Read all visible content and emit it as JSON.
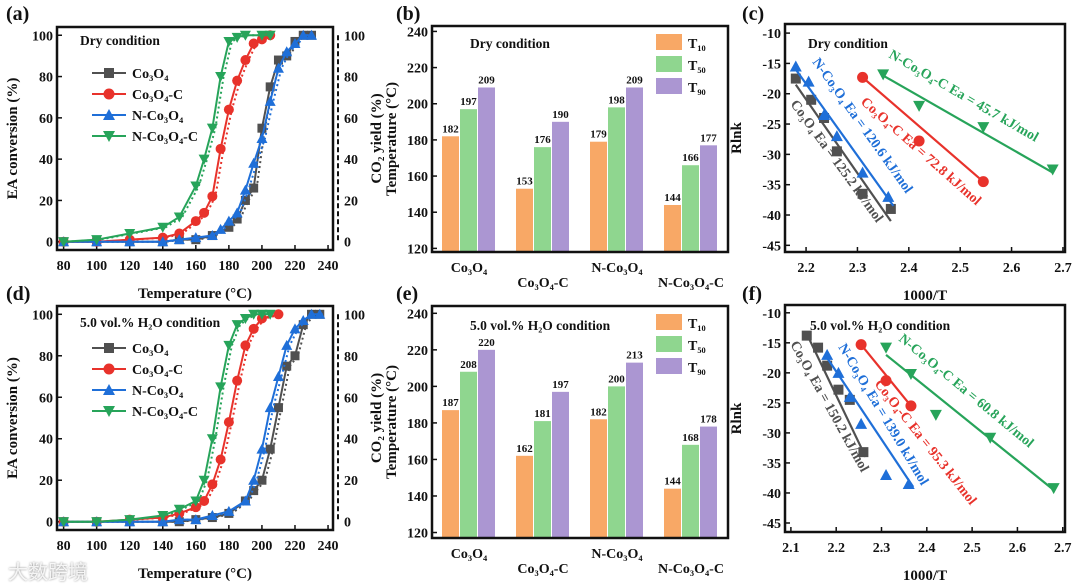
{
  "watermark": "大数跨境",
  "colors": {
    "Co3O4": "#505050",
    "Co3O4-C": "#e8322b",
    "N-Co3O4": "#1f6fd8",
    "N-Co3O4-C": "#27a45a",
    "T10": "#f8a866",
    "T50": "#8fd68f",
    "T90": "#ab96d2"
  },
  "chart_data": [
    {
      "panel": "(a)",
      "type": "line",
      "title": "Dry condition",
      "xlabel": "Temperature (°C)",
      "ylabel": "EA conversion (%)",
      "ylabel_right": "CO₂ yield (%)",
      "xlim": [
        76,
        243
      ],
      "ylim": [
        -4,
        104
      ],
      "xticks": [
        80,
        100,
        120,
        140,
        160,
        180,
        200,
        220,
        240
      ],
      "yticks": [
        0,
        20,
        40,
        60,
        80,
        100
      ],
      "yticks_right": [
        0,
        20,
        40,
        60,
        80,
        100
      ],
      "legend": "top-left",
      "series": [
        {
          "name": "Co₃O₄",
          "key": "Co3O4",
          "marker": "square",
          "x": [
            80,
            100,
            120,
            140,
            150,
            160,
            170,
            180,
            185,
            190,
            195,
            200,
            205,
            210,
            215,
            220,
            225,
            230
          ],
          "y": [
            0,
            0,
            0,
            0,
            1,
            1,
            3,
            7,
            11,
            20,
            26,
            55,
            75,
            88,
            90,
            97,
            100,
            100
          ]
        },
        {
          "name": "Co₃O₄-C",
          "key": "Co3O4-C",
          "marker": "circle",
          "x": [
            80,
            100,
            120,
            140,
            150,
            160,
            165,
            170,
            175,
            180,
            185,
            190,
            195,
            200,
            205
          ],
          "y": [
            0,
            0,
            1,
            2,
            4,
            10,
            14,
            22,
            45,
            64,
            78,
            88,
            96,
            98,
            100
          ]
        },
        {
          "name": "N-Co₃O₄",
          "key": "N-Co3O4",
          "marker": "triangle-up",
          "x": [
            80,
            100,
            120,
            140,
            150,
            160,
            170,
            175,
            180,
            185,
            190,
            195,
            200,
            205,
            210,
            215,
            220,
            225,
            230
          ],
          "y": [
            0,
            0,
            0,
            0,
            1,
            2,
            3,
            6,
            10,
            14,
            25,
            38,
            50,
            68,
            84,
            92,
            96,
            100,
            100
          ]
        },
        {
          "name": "N-Co₃O₄-C",
          "key": "N-Co3O4-C",
          "marker": "triangle-down",
          "x": [
            80,
            100,
            120,
            140,
            150,
            160,
            165,
            170,
            175,
            180,
            185,
            190,
            200,
            205
          ],
          "y": [
            0,
            1,
            4,
            7,
            12,
            27,
            40,
            55,
            80,
            97,
            99,
            100,
            100,
            100
          ]
        }
      ]
    },
    {
      "panel": "(b)",
      "type": "bar",
      "title": "Dry condition",
      "xlabel": "",
      "ylabel": "Temperature (°C)",
      "ylim": [
        118,
        243
      ],
      "yticks": [
        120,
        140,
        160,
        180,
        200,
        220,
        240
      ],
      "categories": [
        "Co₃O₄",
        "Co₃O₄-C",
        "N-Co₃O₄",
        "N-Co₃O₄-C"
      ],
      "legend": "top-right",
      "series": [
        {
          "name": "T₁₀",
          "key": "T10",
          "values": [
            182,
            153,
            179,
            144
          ]
        },
        {
          "name": "T₅₀",
          "key": "T50",
          "values": [
            197,
            176,
            198,
            166
          ]
        },
        {
          "name": "T₉₀",
          "key": "T90",
          "values": [
            209,
            190,
            209,
            177
          ]
        }
      ]
    },
    {
      "panel": "(c)",
      "type": "scatter",
      "title": "Dry condition",
      "xlabel": "1000/T",
      "ylabel": "Rlnk",
      "xlim": [
        2.159,
        2.704
      ],
      "ylim": [
        -46.1,
        -8.5
      ],
      "xticks": [
        2.2,
        2.3,
        2.4,
        2.5,
        2.6,
        2.7
      ],
      "yticks": [
        -10,
        -15,
        -20,
        -25,
        -30,
        -35,
        -40,
        -45
      ],
      "series": [
        {
          "name": "Co₃O₄ Ea = 125.2 kJ/mol",
          "key": "Co3O4",
          "marker": "square",
          "x": [
            2.18,
            2.21,
            2.235,
            2.26,
            2.31,
            2.365
          ],
          "y": [
            -17.5,
            -21,
            -24,
            -29.5,
            -36.5,
            -39
          ],
          "fit": [
            [
              2.18,
              -18.5
            ],
            [
              2.365,
              -41
            ]
          ]
        },
        {
          "name": "N-Co₃O₄ Ea = 120.6 kJ/mol",
          "key": "N-Co3O4",
          "marker": "triangle-up",
          "x": [
            2.18,
            2.205,
            2.235,
            2.26,
            2.31,
            2.36
          ],
          "y": [
            -15.5,
            -18,
            -23.5,
            -27,
            -33,
            -37
          ],
          "fit": [
            [
              2.18,
              -16
            ],
            [
              2.37,
              -38.5
            ]
          ]
        },
        {
          "name": "Co₃O₄-C Ea = 72.8 kJ/mol",
          "key": "Co3O4-C",
          "marker": "circle",
          "x": [
            2.31,
            2.42,
            2.545
          ],
          "y": [
            -17.3,
            -27.8,
            -34.5
          ],
          "fit": [
            [
              2.31,
              -17.3
            ],
            [
              2.545,
              -34.5
            ]
          ]
        },
        {
          "name": "N-Co₃O₄-C Ea = 45.7 kJ/mol",
          "key": "N-Co3O4-C",
          "marker": "triangle-down",
          "x": [
            2.35,
            2.42,
            2.545,
            2.68
          ],
          "y": [
            -16.8,
            -22,
            -25.5,
            -32.5
          ],
          "fit": [
            [
              2.35,
              -17
            ],
            [
              2.68,
              -33
            ]
          ]
        }
      ]
    },
    {
      "panel": "(d)",
      "type": "line",
      "title": "5.0 vol.% H₂O condition",
      "xlabel": "Temperature (°C)",
      "ylabel": "EA conversion (%)",
      "ylabel_right": "CO₂ yield (%)",
      "xlim": [
        76,
        243
      ],
      "ylim": [
        -4,
        104
      ],
      "xticks": [
        80,
        100,
        120,
        140,
        160,
        180,
        200,
        220,
        240
      ],
      "yticks": [
        0,
        20,
        40,
        60,
        80,
        100
      ],
      "yticks_right": [
        0,
        20,
        40,
        60,
        80,
        100
      ],
      "legend": "top-left",
      "series": [
        {
          "name": "Co₃O₄",
          "key": "Co3O4",
          "marker": "square",
          "x": [
            80,
            100,
            120,
            140,
            150,
            160,
            170,
            180,
            190,
            195,
            200,
            205,
            210,
            215,
            220,
            225,
            230,
            235
          ],
          "y": [
            0,
            0,
            0,
            0,
            0,
            1,
            2,
            4,
            10,
            15,
            20,
            35,
            55,
            75,
            80,
            95,
            100,
            100
          ]
        },
        {
          "name": "Co₃O₄-C",
          "key": "Co3O4-C",
          "marker": "circle",
          "x": [
            80,
            100,
            120,
            140,
            150,
            160,
            165,
            170,
            175,
            180,
            185,
            190,
            195,
            200,
            210
          ],
          "y": [
            0,
            0,
            1,
            2,
            4,
            7,
            10,
            18,
            30,
            48,
            68,
            85,
            93,
            98,
            100
          ]
        },
        {
          "name": "N-Co₃O₄",
          "key": "N-Co3O4",
          "marker": "triangle-up",
          "x": [
            80,
            100,
            120,
            140,
            150,
            160,
            170,
            180,
            190,
            195,
            200,
            205,
            210,
            215,
            220,
            225,
            230,
            235
          ],
          "y": [
            0,
            0,
            0,
            0,
            1,
            1,
            3,
            5,
            10,
            20,
            35,
            55,
            70,
            85,
            93,
            97,
            100,
            100
          ]
        },
        {
          "name": "N-Co₃O₄-C",
          "key": "N-Co3O4-C",
          "marker": "triangle-down",
          "x": [
            80,
            100,
            120,
            140,
            150,
            160,
            165,
            170,
            175,
            180,
            185,
            190,
            195,
            200,
            205
          ],
          "y": [
            0,
            0,
            1,
            3,
            6,
            10,
            20,
            40,
            65,
            85,
            95,
            98,
            100,
            100,
            100
          ]
        }
      ]
    },
    {
      "panel": "(e)",
      "type": "bar",
      "title": "5.0 vol.% H₂O condition",
      "xlabel": "",
      "ylabel": "Temperature (°C)",
      "ylim": [
        117,
        244
      ],
      "yticks": [
        120,
        140,
        160,
        180,
        200,
        220,
        240
      ],
      "categories": [
        "Co₃O₄",
        "Co₃O₄-C",
        "N-Co₃O₄",
        "N-Co₃O₄-C"
      ],
      "legend": "top-right",
      "series": [
        {
          "name": "T₁₀",
          "key": "T10",
          "values": [
            187,
            162,
            182,
            144
          ]
        },
        {
          "name": "T₅₀",
          "key": "T50",
          "values": [
            208,
            181,
            200,
            168
          ]
        },
        {
          "name": "T₉₀",
          "key": "T90",
          "values": [
            220,
            197,
            213,
            178
          ]
        }
      ]
    },
    {
      "panel": "(f)",
      "type": "scatter",
      "title": "5.0 vol.% H₂O condition",
      "xlabel": "1000/T",
      "ylabel": "Rlnk",
      "xlim": [
        2.087,
        2.705
      ],
      "ylim": [
        -46.5,
        -8.7
      ],
      "xticks": [
        2.1,
        2.2,
        2.3,
        2.4,
        2.5,
        2.6,
        2.7
      ],
      "yticks": [
        -10,
        -15,
        -20,
        -25,
        -30,
        -35,
        -40,
        -45
      ],
      "series": [
        {
          "name": "Co₃O₄ Ea = 150.2 kJ/mol",
          "key": "Co3O4",
          "marker": "square",
          "x": [
            2.135,
            2.16,
            2.18,
            2.205,
            2.23,
            2.26
          ],
          "y": [
            -13.8,
            -15.8,
            -18.8,
            -22.8,
            -24.5,
            -33.2
          ],
          "fit": [
            [
              2.135,
              -13.5
            ],
            [
              2.265,
              -34
            ]
          ]
        },
        {
          "name": "N-Co₃O₄ Ea = 139.0 kJ/mol",
          "key": "N-Co3O4",
          "marker": "triangle-up",
          "x": [
            2.18,
            2.205,
            2.23,
            2.255,
            2.31,
            2.36
          ],
          "y": [
            -17,
            -20,
            -24,
            -28.5,
            -37,
            -38.5
          ],
          "fit": [
            [
              2.18,
              -17.5
            ],
            [
              2.37,
              -39
            ]
          ]
        },
        {
          "name": "Co₃O₄-C Ea = 95.3 kJ/mol",
          "key": "Co3O4-C",
          "marker": "circle",
          "x": [
            2.255,
            2.31,
            2.365
          ],
          "y": [
            -15.3,
            -21.3,
            -25.5
          ],
          "fit": [
            [
              2.255,
              -15.3
            ],
            [
              2.365,
              -25.5
            ]
          ]
        },
        {
          "name": "N-Co₃O₄-C Ea = 60.8 kJ/mol",
          "key": "N-Co3O4-C",
          "marker": "triangle-down",
          "x": [
            2.31,
            2.365,
            2.42,
            2.54,
            2.68
          ],
          "y": [
            -15.8,
            -20.2,
            -27,
            -30.8,
            -39.2
          ],
          "fit": [
            [
              2.31,
              -17
            ],
            [
              2.68,
              -39.5
            ]
          ]
        }
      ]
    }
  ]
}
